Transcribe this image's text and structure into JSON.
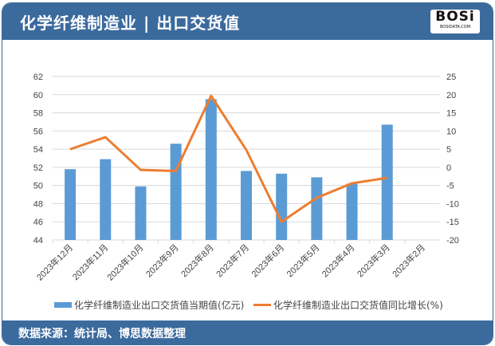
{
  "header": {
    "title": "化学纤维制造业 | 出口交货值",
    "logo_text": "BOSi",
    "logo_sub": "BOSIDATA.COM"
  },
  "footer": {
    "source": "数据来源：统计局、博思数据整理"
  },
  "colors": {
    "bar": "#5b9bd5",
    "line": "#ed7d31",
    "header": "#3b6a9d"
  },
  "chart_data": {
    "type": "bar+line",
    "categories": [
      "2023年12月",
      "2023年11月",
      "2023年10月",
      "2023年9月",
      "2023年8月",
      "2023年7月",
      "2023年6月",
      "2023年5月",
      "2023年4月",
      "2023年3月",
      "2023年2月"
    ],
    "series": [
      {
        "name": "化学纤维制造业出口交货值当期值(亿元)",
        "type": "bar",
        "axis": "left",
        "values": [
          51.8,
          52.9,
          49.9,
          54.6,
          59.5,
          51.6,
          51.3,
          50.9,
          50.2,
          56.7,
          null
        ]
      },
      {
        "name": "化学纤维制造业出口交货值同比增长(%)",
        "type": "line",
        "axis": "right",
        "values": [
          5.0,
          8.3,
          -0.7,
          -1.0,
          19.7,
          4.8,
          -15.0,
          -8.4,
          -4.4,
          -2.9,
          null
        ]
      }
    ],
    "y_left": {
      "min": 44,
      "max": 62,
      "step": 2
    },
    "y_right": {
      "min": -20,
      "max": 25,
      "step": 5
    },
    "grid": true,
    "legend": "bottom"
  }
}
